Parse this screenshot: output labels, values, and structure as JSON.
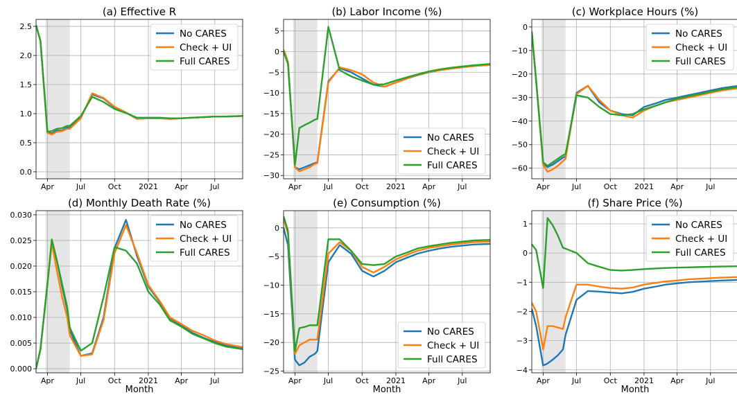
{
  "xlabel": "Month",
  "colors": {
    "No CARES": "#1f77b4",
    "Check + UI": "#ff7f0e",
    "Full CARES": "#2ca02c",
    "grid": "#b0b0b0",
    "shade": "#d3d3d3"
  },
  "chart_data": [
    {
      "type": "line",
      "title": "(a) Effective R",
      "xlabel": "",
      "legend": "top-right",
      "xlim": [
        "2020-03-01",
        "2021-09-15"
      ],
      "ylim": [
        -0.12,
        2.62
      ],
      "yticks": [
        0.0,
        0.5,
        1.0,
        1.5,
        2.0,
        2.5
      ],
      "ytick_labels": [
        "0.0",
        "0.5",
        "1.0",
        "1.5",
        "2.0",
        "2.5"
      ],
      "xticks": [
        "2020-04-01",
        "2020-07-01",
        "2020-10-01",
        "2021-01-01",
        "2021-04-01",
        "2021-07-01"
      ],
      "xtick_labels": [
        "Apr",
        "Jul",
        "Oct",
        "2021",
        "Apr",
        "Jul"
      ],
      "shaded_x": [
        "2020-03-27",
        "2020-06-01"
      ],
      "x": [
        "2020-03-01",
        "2020-03-13",
        "2020-04-01",
        "2020-04-13",
        "2020-04-27",
        "2020-05-11",
        "2020-05-25",
        "2020-06-01",
        "2020-07-01",
        "2020-08-01",
        "2020-09-01",
        "2020-10-01",
        "2020-11-01",
        "2020-12-01",
        "2021-01-01",
        "2021-02-01",
        "2021-03-01",
        "2021-04-01",
        "2021-05-01",
        "2021-06-01",
        "2021-07-01",
        "2021-08-01",
        "2021-09-15"
      ],
      "series": [
        {
          "name": "No CARES",
          "values": [
            2.52,
            2.25,
            0.68,
            0.66,
            0.71,
            0.71,
            0.76,
            0.76,
            0.93,
            1.33,
            1.26,
            1.11,
            1.02,
            0.91,
            0.92,
            0.92,
            0.91,
            0.92,
            0.93,
            0.94,
            0.95,
            0.95,
            0.96
          ]
        },
        {
          "name": "Check + UI",
          "values": [
            2.52,
            2.25,
            0.67,
            0.64,
            0.69,
            0.7,
            0.74,
            0.74,
            0.92,
            1.35,
            1.27,
            1.12,
            1.02,
            0.91,
            0.92,
            0.92,
            0.91,
            0.92,
            0.93,
            0.94,
            0.95,
            0.95,
            0.96
          ]
        },
        {
          "name": "Full CARES",
          "values": [
            2.52,
            2.25,
            0.69,
            0.7,
            0.74,
            0.75,
            0.79,
            0.79,
            0.96,
            1.29,
            1.2,
            1.08,
            1.01,
            0.93,
            0.93,
            0.93,
            0.92,
            0.92,
            0.93,
            0.94,
            0.95,
            0.95,
            0.96
          ]
        }
      ]
    },
    {
      "type": "line",
      "title": "(b) Labor Income (%)",
      "xlabel": "",
      "legend": "lower-right",
      "xlim": [
        "2020-03-01",
        "2021-09-15"
      ],
      "ylim": [
        -30.8,
        7.8
      ],
      "yticks": [
        5,
        0,
        -5,
        -10,
        -15,
        -20,
        -25,
        -30
      ],
      "ytick_labels": [
        "5",
        "0",
        "−5",
        "−10",
        "−15",
        "−20",
        "−25",
        "−30"
      ],
      "xticks": [
        "2020-04-01",
        "2020-07-01",
        "2020-10-01",
        "2021-01-01",
        "2021-04-01",
        "2021-07-01"
      ],
      "xtick_labels": [
        "Apr",
        "Jul",
        "Oct",
        "2021",
        "Apr",
        "Jul"
      ],
      "shaded_x": [
        "2020-03-27",
        "2020-06-01"
      ],
      "x": [
        "2020-03-01",
        "2020-03-13",
        "2020-04-01",
        "2020-04-13",
        "2020-04-27",
        "2020-05-11",
        "2020-05-25",
        "2020-06-01",
        "2020-07-01",
        "2020-08-01",
        "2020-09-01",
        "2020-10-01",
        "2020-11-01",
        "2020-12-01",
        "2021-01-01",
        "2021-02-01",
        "2021-03-01",
        "2021-04-01",
        "2021-05-01",
        "2021-06-01",
        "2021-07-01",
        "2021-08-01",
        "2021-09-15"
      ],
      "series": [
        {
          "name": "No CARES",
          "values": [
            0.5,
            -2.5,
            -28.0,
            -28.5,
            -28.0,
            -27.5,
            -27.0,
            -26.8,
            -7.2,
            -4.0,
            -5.0,
            -6.5,
            -8.0,
            -8.5,
            -7.5,
            -6.5,
            -5.7,
            -5.0,
            -4.5,
            -4.1,
            -3.8,
            -3.5,
            -3.2
          ]
        },
        {
          "name": "Check + UI",
          "values": [
            0.5,
            -2.5,
            -28.0,
            -29.0,
            -28.5,
            -28.0,
            -27.2,
            -27.0,
            -7.5,
            -3.8,
            -4.5,
            -5.5,
            -7.5,
            -8.5,
            -7.5,
            -6.5,
            -5.6,
            -4.9,
            -4.5,
            -4.1,
            -3.8,
            -3.5,
            -3.2
          ]
        },
        {
          "name": "Full CARES",
          "values": [
            0.0,
            -3.0,
            -27.5,
            -18.5,
            -17.8,
            -17.2,
            -16.5,
            -16.3,
            6.0,
            -4.5,
            -6.0,
            -7.0,
            -8.0,
            -7.9,
            -7.0,
            -6.2,
            -5.5,
            -4.8,
            -4.3,
            -3.9,
            -3.6,
            -3.3,
            -3.0
          ]
        }
      ]
    },
    {
      "type": "line",
      "title": "(c) Workplace Hours (%)",
      "xlabel": "",
      "legend": "top-right",
      "xlim": [
        "2020-03-01",
        "2021-09-15"
      ],
      "ylim": [
        -64.5,
        3.2
      ],
      "yticks": [
        0,
        -10,
        -20,
        -30,
        -40,
        -50,
        -60
      ],
      "ytick_labels": [
        "0",
        "−10",
        "−20",
        "−30",
        "−40",
        "−50",
        "−60"
      ],
      "xticks": [
        "2020-04-01",
        "2020-07-01",
        "2020-10-01",
        "2021-01-01",
        "2021-04-01",
        "2021-07-01"
      ],
      "xtick_labels": [
        "Apr",
        "Jul",
        "Oct",
        "2021",
        "Apr",
        "Jul"
      ],
      "shaded_x": [
        "2020-03-27",
        "2020-06-01"
      ],
      "x": [
        "2020-03-01",
        "2020-03-13",
        "2020-04-01",
        "2020-04-13",
        "2020-04-27",
        "2020-05-11",
        "2020-05-25",
        "2020-06-01",
        "2020-07-01",
        "2020-08-01",
        "2020-09-01",
        "2020-10-01",
        "2020-11-01",
        "2020-12-01",
        "2021-01-01",
        "2021-02-01",
        "2021-03-01",
        "2021-04-01",
        "2021-05-01",
        "2021-06-01",
        "2021-07-01",
        "2021-08-01",
        "2021-09-15"
      ],
      "series": [
        {
          "name": "No CARES",
          "values": [
            -2.0,
            -23.0,
            -58.0,
            -59.5,
            -58.5,
            -57.0,
            -55.5,
            -55.0,
            -28.0,
            -25.0,
            -32.0,
            -35.5,
            -37.0,
            -37.5,
            -34.0,
            -32.5,
            -31.0,
            -30.0,
            -29.0,
            -28.0,
            -27.0,
            -26.0,
            -25.0
          ]
        },
        {
          "name": "Check + UI",
          "values": [
            -2.0,
            -23.0,
            -58.5,
            -61.5,
            -60.5,
            -59.0,
            -57.0,
            -56.0,
            -28.5,
            -25.0,
            -31.0,
            -35.5,
            -37.5,
            -38.5,
            -35.5,
            -33.5,
            -32.0,
            -31.0,
            -30.0,
            -29.0,
            -28.0,
            -27.0,
            -26.0
          ]
        },
        {
          "name": "Full CARES",
          "values": [
            -2.0,
            -23.0,
            -57.5,
            -59.0,
            -57.5,
            -56.0,
            -54.5,
            -54.0,
            -29.0,
            -30.0,
            -34.0,
            -37.0,
            -37.5,
            -37.0,
            -35.0,
            -33.5,
            -32.0,
            -30.5,
            -29.5,
            -28.5,
            -27.5,
            -26.5,
            -25.5
          ]
        }
      ]
    },
    {
      "type": "line",
      "title": "(d) Monthly Death Rate (%)",
      "xlabel": "Month",
      "legend": "top-right",
      "xlim": [
        "2020-03-01",
        "2021-09-15"
      ],
      "ylim": [
        -0.0008,
        0.0308
      ],
      "yticks": [
        0.0,
        0.005,
        0.01,
        0.015,
        0.02,
        0.025,
        0.03
      ],
      "ytick_labels": [
        "0.000",
        "0.005",
        "0.010",
        "0.015",
        "0.020",
        "0.025",
        "0.030"
      ],
      "xticks": [
        "2020-04-01",
        "2020-07-01",
        "2020-10-01",
        "2021-01-01",
        "2021-04-01",
        "2021-07-01"
      ],
      "xtick_labels": [
        "Apr",
        "Jul",
        "Oct",
        "2021",
        "Apr",
        "Jul"
      ],
      "shaded_x": [
        "2020-03-27",
        "2020-06-01"
      ],
      "x": [
        "2020-03-01",
        "2020-03-13",
        "2020-04-01",
        "2020-04-13",
        "2020-04-27",
        "2020-05-11",
        "2020-05-25",
        "2020-06-01",
        "2020-07-01",
        "2020-08-01",
        "2020-09-01",
        "2020-10-01",
        "2020-11-01",
        "2020-12-01",
        "2021-01-01",
        "2021-02-01",
        "2021-03-01",
        "2021-04-01",
        "2021-05-01",
        "2021-06-01",
        "2021-07-01",
        "2021-08-01",
        "2021-09-15"
      ],
      "series": [
        {
          "name": "No CARES",
          "values": [
            0.0,
            0.0038,
            0.0165,
            0.025,
            0.021,
            0.016,
            0.0115,
            0.0075,
            0.0025,
            0.003,
            0.01,
            0.0235,
            0.029,
            0.022,
            0.016,
            0.013,
            0.0098,
            0.0085,
            0.007,
            0.006,
            0.0052,
            0.0045,
            0.004
          ]
        },
        {
          "name": "Check + UI",
          "values": [
            0.0,
            0.0038,
            0.0165,
            0.0245,
            0.019,
            0.014,
            0.01,
            0.0065,
            0.0025,
            0.0028,
            0.0095,
            0.0225,
            0.028,
            0.0225,
            0.0163,
            0.0132,
            0.01,
            0.0087,
            0.0074,
            0.0065,
            0.0055,
            0.0048,
            0.0042
          ]
        },
        {
          "name": "Full CARES",
          "values": [
            0.0,
            0.0038,
            0.0165,
            0.0252,
            0.021,
            0.0165,
            0.012,
            0.008,
            0.0035,
            0.005,
            0.014,
            0.0237,
            0.023,
            0.0205,
            0.015,
            0.0125,
            0.0094,
            0.0082,
            0.0068,
            0.0059,
            0.005,
            0.0043,
            0.0038
          ]
        }
      ]
    },
    {
      "type": "line",
      "title": "(e) Consumption (%)",
      "xlabel": "Month",
      "legend": "lower-right",
      "xlim": [
        "2020-03-01",
        "2021-09-15"
      ],
      "ylim": [
        -25.3,
        3.0
      ],
      "yticks": [
        0,
        -5,
        -10,
        -15,
        -20,
        -25
      ],
      "ytick_labels": [
        "0",
        "−5",
        "−10",
        "−15",
        "−20",
        "−25"
      ],
      "xticks": [
        "2020-04-01",
        "2020-07-01",
        "2020-10-01",
        "2021-01-01",
        "2021-04-01",
        "2021-07-01"
      ],
      "xtick_labels": [
        "Apr",
        "Jul",
        "Oct",
        "2021",
        "Apr",
        "Jul"
      ],
      "shaded_x": [
        "2020-03-27",
        "2020-06-01"
      ],
      "x": [
        "2020-03-01",
        "2020-03-13",
        "2020-04-01",
        "2020-04-13",
        "2020-04-27",
        "2020-05-11",
        "2020-05-25",
        "2020-06-01",
        "2020-07-01",
        "2020-08-01",
        "2020-09-01",
        "2020-10-01",
        "2020-11-01",
        "2020-12-01",
        "2021-01-01",
        "2021-02-01",
        "2021-03-01",
        "2021-04-01",
        "2021-05-01",
        "2021-06-01",
        "2021-07-01",
        "2021-08-01",
        "2021-09-15"
      ],
      "series": [
        {
          "name": "No CARES",
          "values": [
            0.0,
            -3.0,
            -23.0,
            -24.0,
            -23.5,
            -22.5,
            -22.0,
            -21.5,
            -6.0,
            -3.0,
            -4.5,
            -7.5,
            -8.5,
            -7.5,
            -6.0,
            -5.2,
            -4.5,
            -4.0,
            -3.6,
            -3.3,
            -3.1,
            -2.9,
            -2.8
          ]
        },
        {
          "name": "Check + UI",
          "values": [
            1.5,
            -1.0,
            -22.0,
            -20.5,
            -20.0,
            -19.5,
            -19.5,
            -19.5,
            -4.5,
            -2.5,
            -4.0,
            -6.8,
            -7.8,
            -6.8,
            -5.5,
            -4.7,
            -4.0,
            -3.5,
            -3.2,
            -2.9,
            -2.7,
            -2.5,
            -2.4
          ]
        },
        {
          "name": "Full CARES",
          "values": [
            2.0,
            -0.5,
            -21.5,
            -17.5,
            -17.3,
            -17.0,
            -17.0,
            -17.0,
            -2.0,
            -2.0,
            -4.0,
            -6.3,
            -6.5,
            -6.3,
            -5.0,
            -4.3,
            -3.6,
            -3.2,
            -2.9,
            -2.6,
            -2.4,
            -2.2,
            -2.1
          ]
        }
      ]
    },
    {
      "type": "line",
      "title": "(f) Share Price (%)",
      "xlabel": "Month",
      "legend": "top-right",
      "xlim": [
        "2020-03-01",
        "2021-09-15"
      ],
      "ylim": [
        -4.1,
        1.45
      ],
      "yticks": [
        1,
        0,
        -1,
        -2,
        -3,
        -4
      ],
      "ytick_labels": [
        "1",
        "0",
        "−1",
        "−2",
        "−3",
        "−4"
      ],
      "xticks": [
        "2020-04-01",
        "2020-07-01",
        "2020-10-01",
        "2021-01-01",
        "2021-04-01",
        "2021-07-01"
      ],
      "xtick_labels": [
        "Apr",
        "Jul",
        "Oct",
        "2021",
        "Apr",
        "Jul"
      ],
      "shaded_x": [
        "2020-03-27",
        "2020-06-01"
      ],
      "x": [
        "2020-03-01",
        "2020-03-13",
        "2020-04-01",
        "2020-04-13",
        "2020-04-27",
        "2020-05-11",
        "2020-05-25",
        "2020-06-01",
        "2020-07-01",
        "2020-08-01",
        "2020-09-01",
        "2020-10-01",
        "2020-11-01",
        "2020-12-01",
        "2021-01-01",
        "2021-02-01",
        "2021-03-01",
        "2021-04-01",
        "2021-05-01",
        "2021-06-01",
        "2021-07-01",
        "2021-08-01",
        "2021-09-15"
      ],
      "series": [
        {
          "name": "No CARES",
          "values": [
            -1.9,
            -2.5,
            -3.85,
            -3.78,
            -3.65,
            -3.5,
            -3.3,
            -2.8,
            -1.6,
            -1.3,
            -1.32,
            -1.35,
            -1.38,
            -1.33,
            -1.22,
            -1.15,
            -1.08,
            -1.04,
            -1.0,
            -0.98,
            -0.96,
            -0.94,
            -0.92
          ]
        },
        {
          "name": "Check + UI",
          "values": [
            -1.7,
            -2.0,
            -3.3,
            -2.5,
            -2.5,
            -2.55,
            -2.6,
            -2.2,
            -1.08,
            -1.08,
            -1.15,
            -1.2,
            -1.22,
            -1.18,
            -1.08,
            -1.02,
            -0.97,
            -0.94,
            -0.9,
            -0.88,
            -0.86,
            -0.84,
            -0.82
          ]
        },
        {
          "name": "Full CARES",
          "values": [
            0.3,
            0.1,
            -1.2,
            1.2,
            0.95,
            0.6,
            0.18,
            0.15,
            0.0,
            -0.35,
            -0.47,
            -0.58,
            -0.6,
            -0.58,
            -0.55,
            -0.53,
            -0.51,
            -0.5,
            -0.49,
            -0.48,
            -0.47,
            -0.46,
            -0.45
          ]
        }
      ]
    }
  ]
}
